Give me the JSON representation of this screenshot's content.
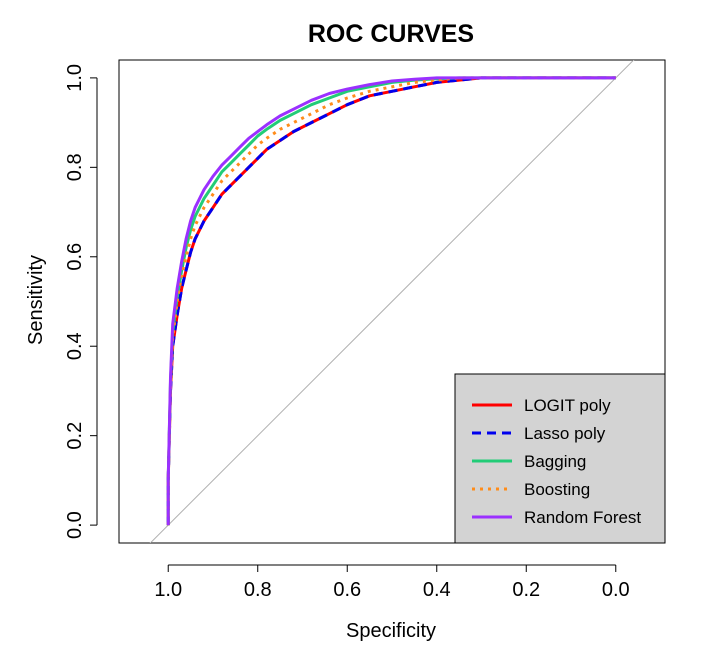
{
  "chart_data": {
    "type": "line",
    "title": "ROC CURVES",
    "xlabel": "Specificity",
    "ylabel": "Sensitivity",
    "xlim": [
      1.11,
      -0.11
    ],
    "ylim": [
      -0.04,
      1.04
    ],
    "x_ticks": [
      1.0,
      0.8,
      0.6,
      0.4,
      0.2,
      0.0
    ],
    "x_tick_labels": [
      "1.0",
      "0.8",
      "0.6",
      "0.4",
      "0.2",
      "0.0"
    ],
    "y_ticks": [
      0.0,
      0.2,
      0.4,
      0.6,
      0.8,
      1.0
    ],
    "y_tick_labels": [
      "0.0",
      "0.2",
      "0.4",
      "0.6",
      "0.8",
      "1.0"
    ],
    "grid": false,
    "legend_position": "bottom-right",
    "reference_line": {
      "from": [
        1.0,
        0.0
      ],
      "to": [
        0.0,
        1.0
      ],
      "color": "#b0b0b0"
    },
    "series": [
      {
        "name": "LOGIT poly",
        "color": "#ff0000",
        "dash": "solid",
        "x": [
          1.0,
          1.0,
          0.995,
          0.99,
          0.98,
          0.97,
          0.96,
          0.95,
          0.94,
          0.92,
          0.9,
          0.88,
          0.86,
          0.84,
          0.82,
          0.8,
          0.78,
          0.75,
          0.72,
          0.68,
          0.64,
          0.6,
          0.55,
          0.5,
          0.45,
          0.4,
          0.35,
          0.3,
          0.0
        ],
        "y": [
          0.0,
          0.1,
          0.3,
          0.4,
          0.47,
          0.53,
          0.57,
          0.61,
          0.64,
          0.68,
          0.71,
          0.74,
          0.76,
          0.78,
          0.8,
          0.82,
          0.84,
          0.86,
          0.88,
          0.9,
          0.92,
          0.94,
          0.96,
          0.97,
          0.98,
          0.99,
          0.995,
          1.0,
          1.0
        ]
      },
      {
        "name": "Lasso poly",
        "color": "#0000ee",
        "dash": "dashed",
        "x": [
          1.0,
          1.0,
          0.995,
          0.99,
          0.98,
          0.97,
          0.96,
          0.95,
          0.94,
          0.92,
          0.9,
          0.88,
          0.86,
          0.84,
          0.82,
          0.8,
          0.78,
          0.75,
          0.72,
          0.68,
          0.64,
          0.6,
          0.55,
          0.5,
          0.45,
          0.4,
          0.35,
          0.3,
          0.0
        ],
        "y": [
          0.0,
          0.1,
          0.3,
          0.4,
          0.47,
          0.53,
          0.57,
          0.61,
          0.64,
          0.68,
          0.71,
          0.74,
          0.76,
          0.78,
          0.8,
          0.82,
          0.84,
          0.86,
          0.88,
          0.9,
          0.92,
          0.94,
          0.96,
          0.97,
          0.98,
          0.99,
          0.995,
          1.0,
          1.0
        ]
      },
      {
        "name": "Bagging",
        "color": "#22cc77",
        "dash": "solid",
        "x": [
          1.0,
          1.0,
          0.995,
          0.99,
          0.98,
          0.97,
          0.96,
          0.95,
          0.94,
          0.92,
          0.9,
          0.88,
          0.86,
          0.84,
          0.82,
          0.8,
          0.78,
          0.75,
          0.72,
          0.68,
          0.64,
          0.6,
          0.55,
          0.5,
          0.45,
          0.4,
          0.35,
          0.3,
          0.0
        ],
        "y": [
          0.0,
          0.1,
          0.32,
          0.43,
          0.51,
          0.57,
          0.62,
          0.66,
          0.69,
          0.73,
          0.76,
          0.79,
          0.81,
          0.83,
          0.85,
          0.87,
          0.885,
          0.905,
          0.92,
          0.94,
          0.955,
          0.97,
          0.98,
          0.99,
          0.995,
          0.998,
          1.0,
          1.0,
          1.0
        ]
      },
      {
        "name": "Boosting",
        "color": "#ff8c1a",
        "dash": "dotted",
        "x": [
          1.0,
          1.0,
          0.995,
          0.99,
          0.98,
          0.97,
          0.96,
          0.95,
          0.94,
          0.92,
          0.9,
          0.88,
          0.86,
          0.84,
          0.82,
          0.8,
          0.78,
          0.75,
          0.72,
          0.68,
          0.64,
          0.6,
          0.55,
          0.5,
          0.45,
          0.4,
          0.35,
          0.3,
          0.0
        ],
        "y": [
          0.0,
          0.1,
          0.31,
          0.42,
          0.5,
          0.56,
          0.6,
          0.64,
          0.67,
          0.71,
          0.74,
          0.77,
          0.79,
          0.81,
          0.83,
          0.85,
          0.865,
          0.885,
          0.9,
          0.92,
          0.94,
          0.955,
          0.97,
          0.98,
          0.99,
          0.995,
          1.0,
          1.0,
          1.0
        ]
      },
      {
        "name": "Random Forest",
        "color": "#9b30ff",
        "dash": "solid",
        "x": [
          1.0,
          1.0,
          0.995,
          0.99,
          0.98,
          0.97,
          0.96,
          0.95,
          0.94,
          0.92,
          0.9,
          0.88,
          0.86,
          0.84,
          0.82,
          0.8,
          0.78,
          0.75,
          0.72,
          0.68,
          0.64,
          0.6,
          0.55,
          0.5,
          0.45,
          0.4,
          0.35,
          0.3,
          0.0
        ],
        "y": [
          0.0,
          0.1,
          0.33,
          0.45,
          0.53,
          0.59,
          0.64,
          0.68,
          0.71,
          0.75,
          0.78,
          0.805,
          0.825,
          0.845,
          0.865,
          0.88,
          0.895,
          0.915,
          0.93,
          0.95,
          0.965,
          0.975,
          0.985,
          0.993,
          0.997,
          1.0,
          1.0,
          1.0,
          1.0
        ]
      }
    ]
  },
  "colors": {
    "background": "#ffffff",
    "legend_background": "#d3d3d3",
    "axis": "#000000"
  }
}
